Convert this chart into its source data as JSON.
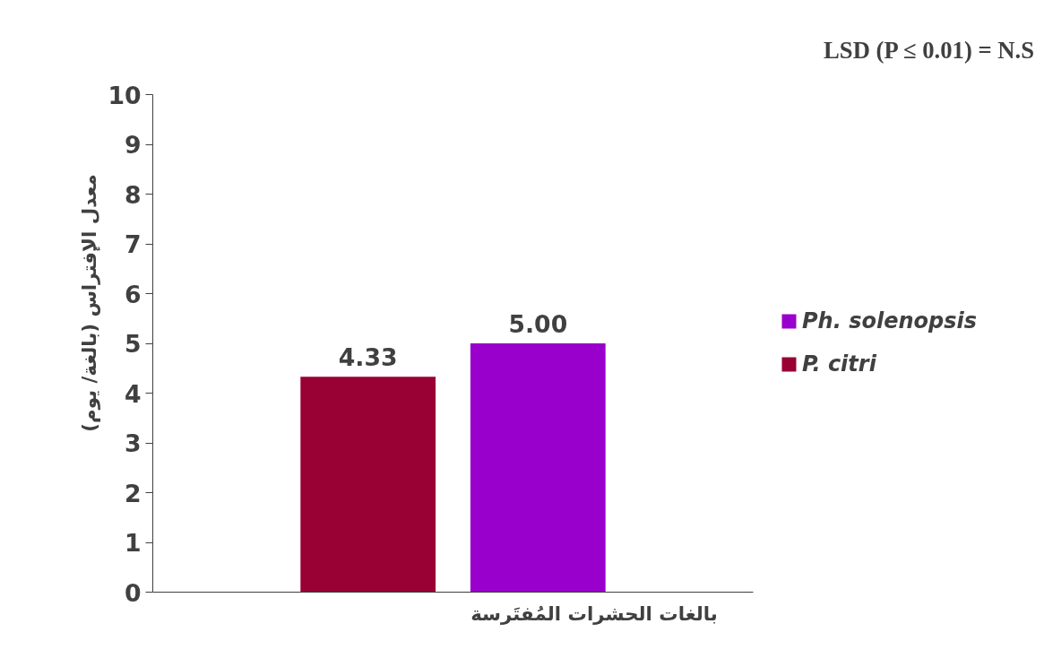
{
  "chart_data": {
    "type": "bar",
    "ylabel": "معدل الإفتراس (بالغة/ يوم)",
    "xlabel": "بالغات الحشرات المُفتَرسة",
    "categories": [
      null
    ],
    "series": [
      {
        "name": "P. citri",
        "color": "#990033",
        "values": [
          4.33
        ],
        "value_labels": [
          "4.33"
        ]
      },
      {
        "name": "Ph. solenopsis",
        "color": "#9900cc",
        "values": [
          5.0
        ],
        "value_labels": [
          "5.00"
        ]
      }
    ],
    "ylim": [
      0,
      10
    ],
    "yticks": [
      0,
      1,
      2,
      3,
      4,
      5,
      6,
      7,
      8,
      9,
      10
    ],
    "grid": false,
    "legend": "right",
    "annotations": [
      "LSD (P ≤ 0.01) = N.S"
    ]
  }
}
